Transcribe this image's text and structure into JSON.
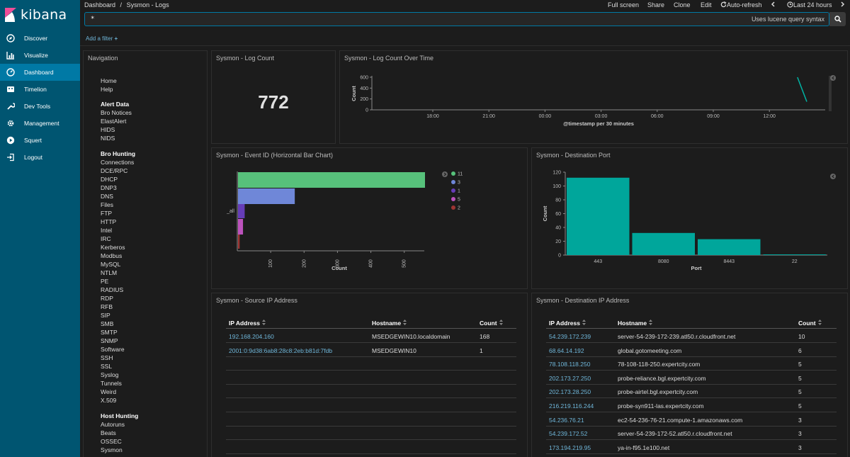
{
  "app": {
    "logo_text": "kibana"
  },
  "sidebar": {
    "items": [
      {
        "label": "Discover",
        "icon": "compass-icon"
      },
      {
        "label": "Visualize",
        "icon": "bar-chart-icon"
      },
      {
        "label": "Dashboard",
        "icon": "dashboard-icon",
        "active": true
      },
      {
        "label": "Timelion",
        "icon": "timelion-icon"
      },
      {
        "label": "Dev Tools",
        "icon": "wrench-icon"
      },
      {
        "label": "Management",
        "icon": "gear-icon"
      },
      {
        "label": "Squert",
        "icon": "play-circle-icon"
      },
      {
        "label": "Logout",
        "icon": "logout-icon"
      }
    ]
  },
  "topbar": {
    "breadcrumb_root": "Dashboard",
    "breadcrumb_sep": "/",
    "breadcrumb_current": "Sysmon - Logs",
    "full_screen": "Full screen",
    "share": "Share",
    "clone": "Clone",
    "edit": "Edit",
    "auto_refresh": "Auto-refresh",
    "time_range": "Last 24 hours"
  },
  "search": {
    "value": "*",
    "hint": "Uses lucene query syntax"
  },
  "filter": {
    "add_label": "Add a filter"
  },
  "navigation": {
    "title": "Navigation",
    "top_links": [
      "Home",
      "Help"
    ],
    "sections": [
      {
        "heading": "Alert Data",
        "links": [
          "Bro Notices",
          "ElastAlert",
          "HIDS",
          "NIDS"
        ]
      },
      {
        "heading": "Bro Hunting",
        "links": [
          "Connections",
          "DCE/RPC",
          "DHCP",
          "DNP3",
          "DNS",
          "Files",
          "FTP",
          "HTTP",
          "Intel",
          "IRC",
          "Kerberos",
          "Modbus",
          "MySQL",
          "NTLM",
          "PE",
          "RADIUS",
          "RDP",
          "RFB",
          "SIP",
          "SMB",
          "SMTP",
          "SNMP",
          "Software",
          "SSH",
          "SSL",
          "Syslog",
          "Tunnels",
          "Weird",
          "X.509"
        ]
      },
      {
        "heading": "Host Hunting",
        "links": [
          "Autoruns",
          "Beats",
          "OSSEC",
          "Sysmon"
        ]
      }
    ]
  },
  "log_count": {
    "title": "Sysmon - Log Count",
    "value": "772"
  },
  "log_over_time": {
    "title": "Sysmon - Log Count Over Time",
    "ylabel": "Count",
    "xlabel": "@timestamp per 30 minutes",
    "yticks": [
      "600",
      "400",
      "200",
      "0"
    ],
    "xticks": [
      "18:00",
      "21:00",
      "00:00",
      "03:00",
      "06:00",
      "09:00",
      "12:00"
    ]
  },
  "event_id": {
    "title": "Sysmon - Event ID (Horizontal Bar Chart)",
    "xlabel": "Count",
    "ylabel": "_all",
    "xticks": [
      "100",
      "200",
      "300",
      "400",
      "500"
    ]
  },
  "dest_port": {
    "title": "Sysmon - Destination Port",
    "xlabel": "Port",
    "ylabel": "Count",
    "yticks": [
      "120",
      "100",
      "80",
      "60",
      "40",
      "20",
      "0"
    ]
  },
  "source_ip": {
    "title": "Sysmon - Source IP Address",
    "headers": [
      "IP Address",
      "Hostname",
      "Count"
    ],
    "rows": [
      [
        "192.168.204.160",
        "MSEDGEWIN10.localdomain",
        "168"
      ],
      [
        "2001:0:9d38:6ab8:28c8:2eb:b81d:7fdb",
        "MSEDGEWIN10",
        "1"
      ]
    ]
  },
  "dest_ip": {
    "title": "Sysmon - Destination IP Address",
    "headers": [
      "IP Address",
      "Hostname",
      "Count"
    ],
    "rows": [
      [
        "54.239.172.239",
        "server-54-239-172-239.atl50.r.cloudfront.net",
        "10"
      ],
      [
        "68.64.14.192",
        "global.gotomeeting.com",
        "6"
      ],
      [
        "78.108.118.250",
        "78-108-118-250.expertcity.com",
        "5"
      ],
      [
        "202.173.27.250",
        "probe-reliance.bgl.expertcity.com",
        "5"
      ],
      [
        "202.173.28.250",
        "probe-airtel.bgl.expertcity.com",
        "5"
      ],
      [
        "216.219.116.244",
        "probe-syn911-las.expertcity.com",
        "5"
      ],
      [
        "54.236.76.21",
        "ec2-54-236-76-21.compute-1.amazonaws.com",
        "3"
      ],
      [
        "54.239.172.52",
        "server-54-239-172-52.atl50.r.cloudfront.net",
        "3"
      ],
      [
        "173.194.219.95",
        "ya-in-f95.1e100.net",
        "3"
      ]
    ]
  },
  "chart_data": [
    {
      "type": "line",
      "title": "Sysmon - Log Count Over Time",
      "xlabel": "@timestamp per 30 minutes",
      "ylabel": "Count",
      "x": [
        "13:30",
        "14:00"
      ],
      "series": [
        {
          "values": [
            600,
            150
          ]
        }
      ],
      "ylim": [
        0,
        600
      ]
    },
    {
      "type": "bar",
      "orientation": "horizontal",
      "title": "Sysmon - Event ID (Horizontal Bar Chart)",
      "xlabel": "Count",
      "categories": [
        "11",
        "3",
        "1",
        "5",
        "2"
      ],
      "values": [
        560,
        170,
        20,
        15,
        5
      ],
      "xlim": [
        0,
        560
      ],
      "colors": [
        "#57c17b",
        "#6f87d8",
        "#663db8",
        "#bc52bc",
        "#9e3533"
      ],
      "legend": "right"
    },
    {
      "type": "bar",
      "title": "Sysmon - Destination Port",
      "xlabel": "Port",
      "ylabel": "Count",
      "categories": [
        "443",
        "8080",
        "8443",
        "22"
      ],
      "values": [
        112,
        32,
        23,
        1
      ],
      "ylim": [
        0,
        120
      ],
      "color": "#00a69b"
    }
  ]
}
